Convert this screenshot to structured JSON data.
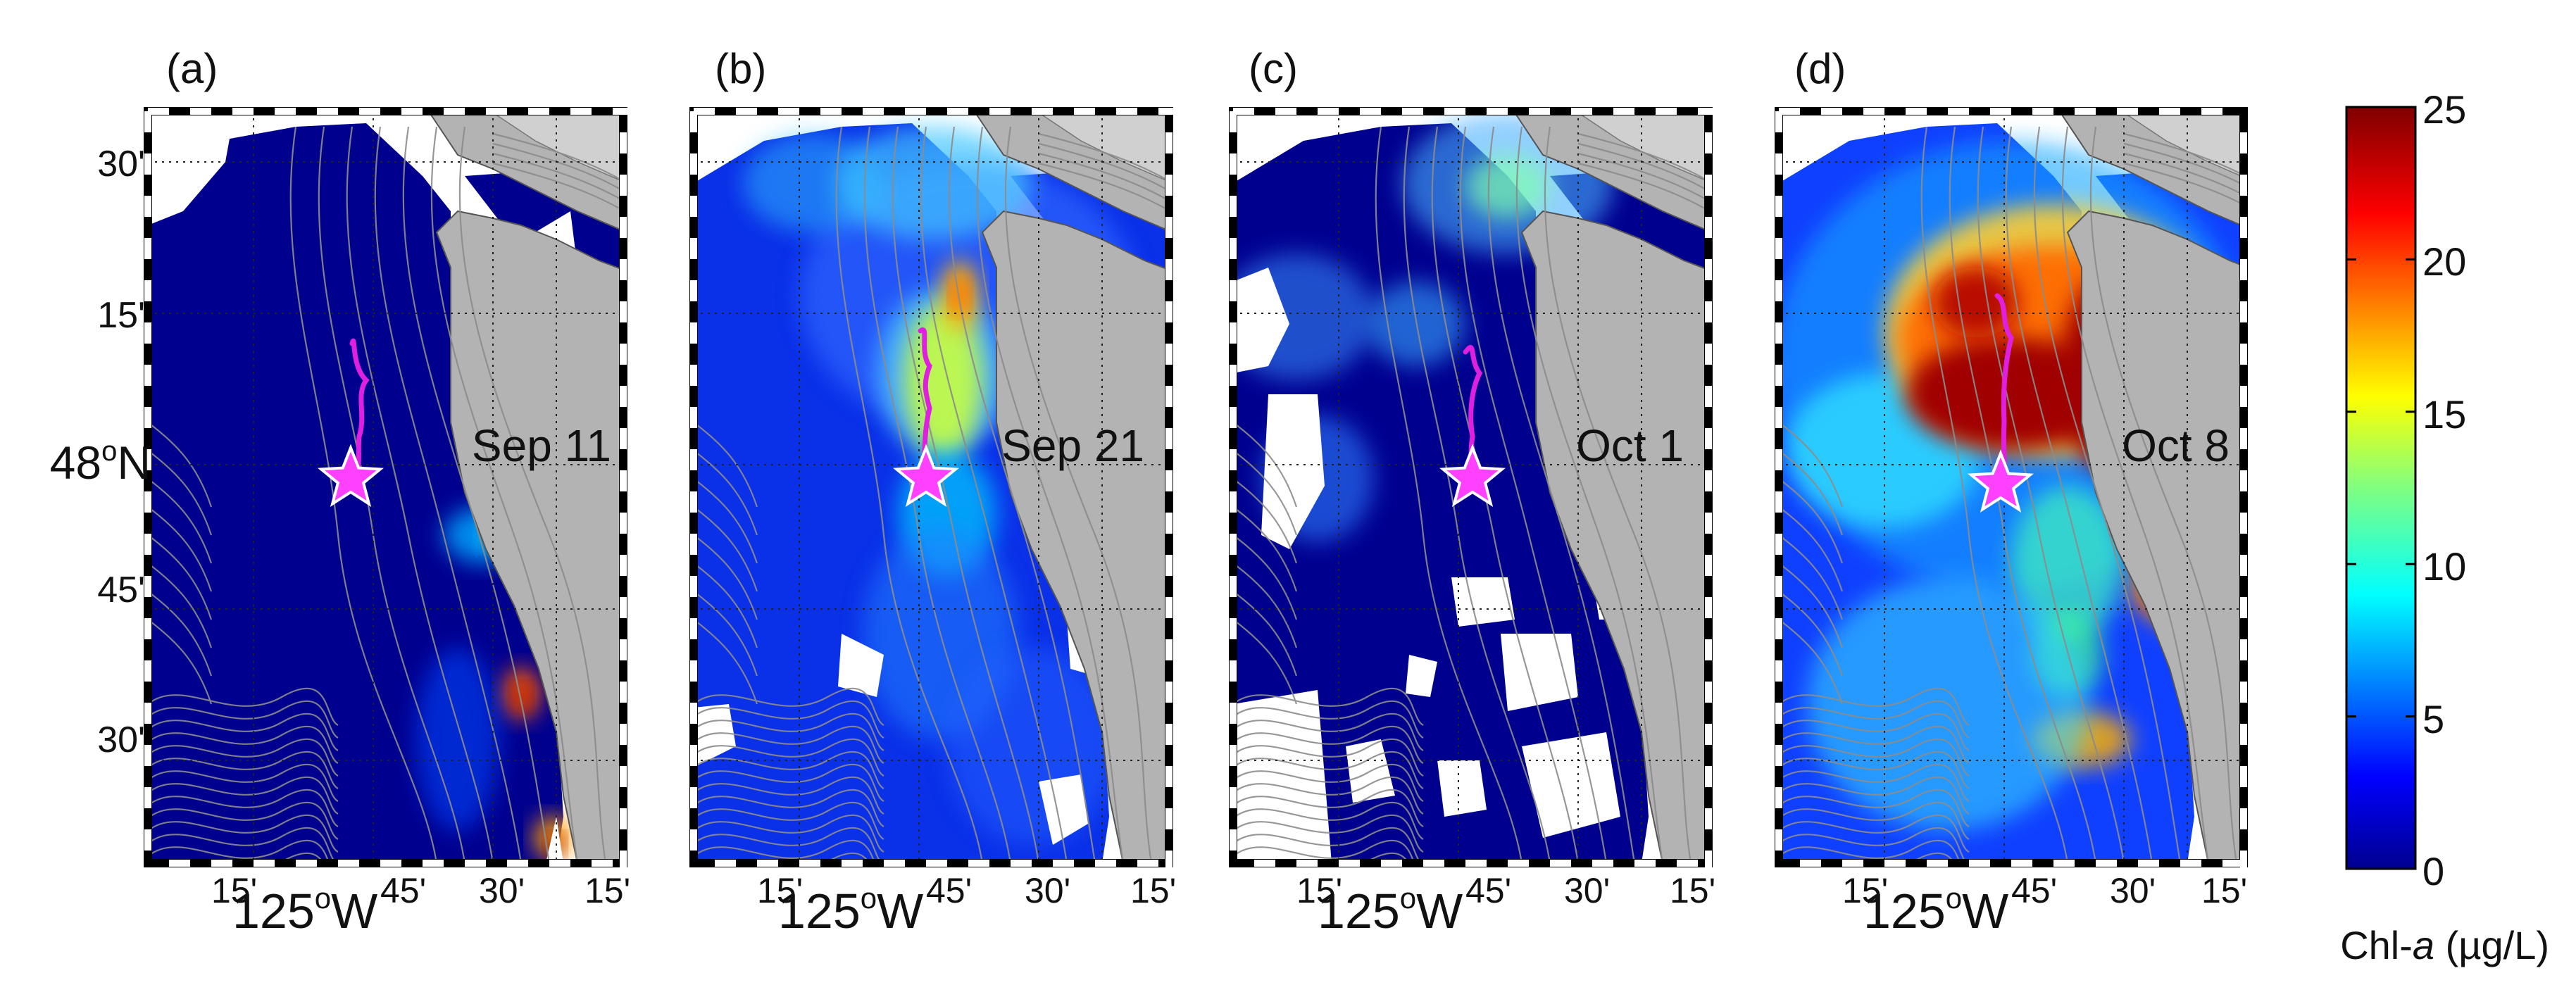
{
  "panels": [
    {
      "letter": "(a)",
      "date": "Sep 11"
    },
    {
      "letter": "(b)",
      "date": "Sep 21"
    },
    {
      "letter": "(c)",
      "date": "Oct 1"
    },
    {
      "letter": "(d)",
      "date": "Oct 8"
    }
  ],
  "y_ticks": [
    {
      "label": "30'"
    },
    {
      "label": "15'"
    },
    {
      "deg": "48",
      "sup": "o",
      "suffix": "N"
    },
    {
      "label": "45'"
    },
    {
      "label": "30'"
    }
  ],
  "x_ticks": {
    "left": "15'",
    "main_deg": "125",
    "main_sup": "o",
    "main_suffix": "W",
    "main_min": "45'",
    "right1": "30'",
    "right2": "15'"
  },
  "colorbar": {
    "ticks": [
      "25",
      "20",
      "15",
      "10",
      "5",
      "0"
    ],
    "label_prefix": "Chl-",
    "label_italic": "a",
    "label_suffix": " (µg/L)",
    "colormap": "jet",
    "range": [
      0,
      25
    ]
  },
  "colors": {
    "land": "#b3b3b3",
    "contour": "#8c8c8c",
    "track": "#e020e0",
    "frame": "#000000"
  },
  "icons": {
    "station_marker": "star-icon"
  }
}
